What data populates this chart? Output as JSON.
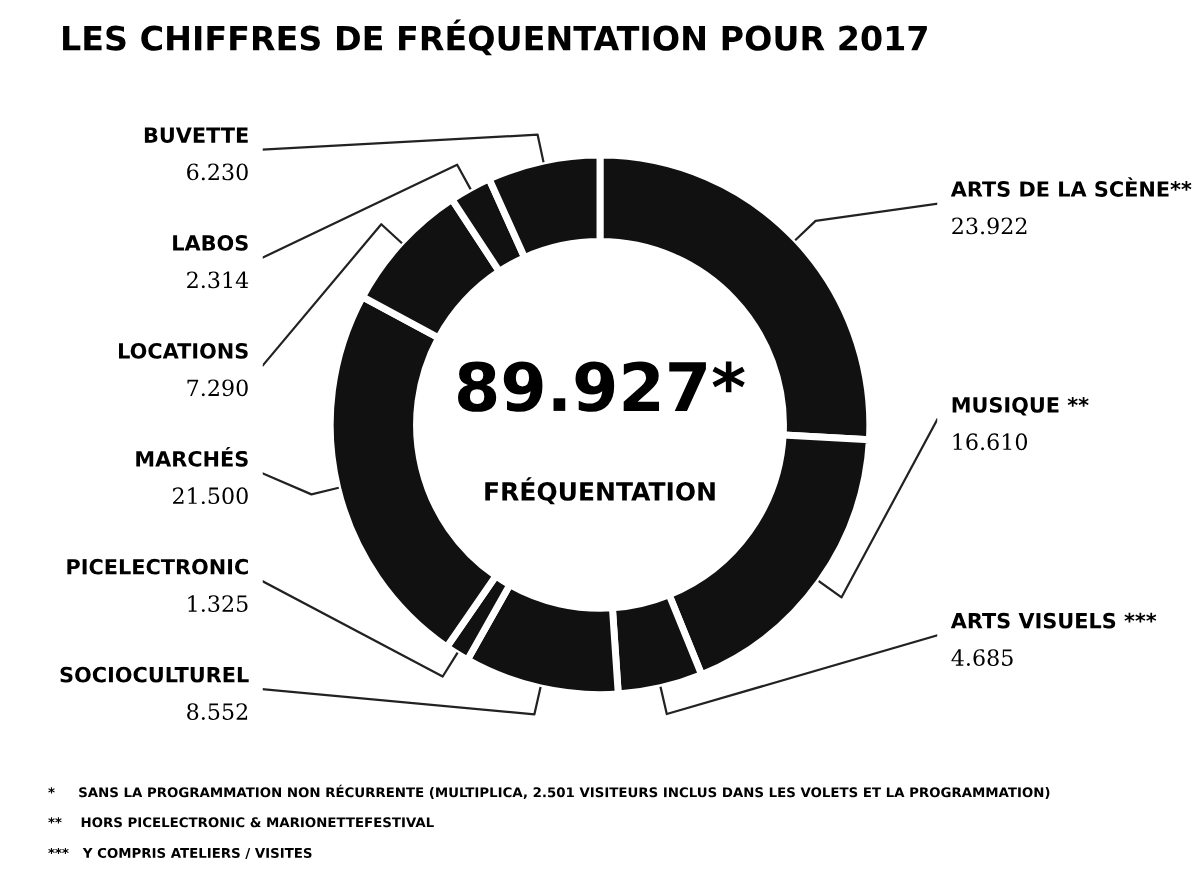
{
  "chart_data": {
    "type": "donut",
    "title": "LES CHIFFRES DE FRÉQUENTATION POUR 2017",
    "categories": [
      "ARTS DE LA SCÈNE**",
      "MUSIQUE **",
      "ARTS VISUELS ***",
      "SOCIOCULTUREL",
      "PICELECTRONIC",
      "MARCHÉS",
      "LOCATIONS",
      "LABOS",
      "BUVETTE"
    ],
    "values": [
      23922,
      16610,
      4685,
      8552,
      1325,
      21500,
      7290,
      2314,
      6230
    ],
    "value_labels": [
      "23.922",
      "16.610",
      "4.685",
      "8.552",
      "1.325",
      "21.500",
      "7.290",
      "2.314",
      "6.230"
    ],
    "colors": [
      "#111111",
      "#111111",
      "#111111",
      "#111111",
      "#111111",
      "#111111",
      "#111111",
      "#111111",
      "#111111"
    ],
    "annotations": [
      "89.927*",
      "FRÉQUENTATION",
      "*     SANS LA PROGRAMMATION NON RÉCURRENTE (MULTIPLICA, 2.501 VISITEURS INCLUS DANS LES VOLETS ET LA PROGRAMMATION)",
      "**    HORS PICELECTRONIC & MARIONETTEFESTIVAL",
      "***   Y COMPRIS ATELIERS / VISITES"
    ],
    "legend": false
  }
}
